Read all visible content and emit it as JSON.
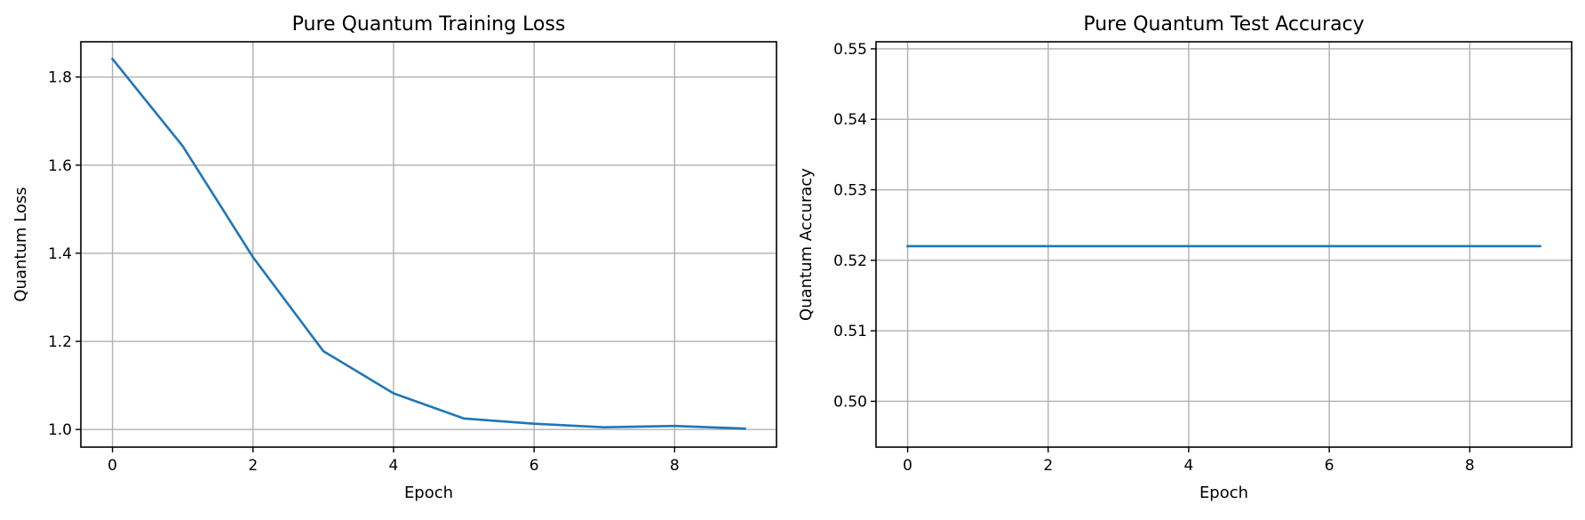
{
  "figure_background": "#ffffff",
  "chart_data": [
    {
      "type": "line",
      "title": "Pure Quantum Training Loss",
      "xlabel": "Epoch",
      "ylabel": "Quantum Loss",
      "grid": true,
      "xlim": [
        -0.45,
        9.45
      ],
      "ylim": [
        0.96,
        1.88
      ],
      "xticks": [
        0,
        2,
        4,
        6,
        8
      ],
      "yticks": [
        1.0,
        1.2,
        1.4,
        1.6,
        1.8
      ],
      "ytick_labels": [
        "1.0",
        "1.2",
        "1.4",
        "1.6",
        "1.8"
      ],
      "series": [
        {
          "color": "#1f77b4",
          "x": [
            0,
            1,
            2,
            3,
            4,
            5,
            6,
            7,
            8,
            9
          ],
          "y": [
            1.841,
            1.643,
            1.391,
            1.178,
            1.082,
            1.025,
            1.013,
            1.005,
            1.008,
            1.002
          ]
        }
      ]
    },
    {
      "type": "line",
      "title": "Pure Quantum Test Accuracy",
      "xlabel": "Epoch",
      "ylabel": "Quantum Accuracy",
      "grid": true,
      "xlim": [
        -0.45,
        9.45
      ],
      "ylim": [
        0.4935,
        0.551
      ],
      "xticks": [
        0,
        2,
        4,
        6,
        8
      ],
      "yticks": [
        0.5,
        0.51,
        0.52,
        0.53,
        0.54,
        0.55
      ],
      "ytick_labels": [
        "0.50",
        "0.51",
        "0.52",
        "0.53",
        "0.54",
        "0.55"
      ],
      "series": [
        {
          "color": "#1f77b4",
          "x": [
            0,
            1,
            2,
            3,
            4,
            5,
            6,
            7,
            8,
            9
          ],
          "y": [
            0.522,
            0.522,
            0.522,
            0.522,
            0.522,
            0.522,
            0.522,
            0.522,
            0.522,
            0.522
          ]
        }
      ]
    }
  ]
}
